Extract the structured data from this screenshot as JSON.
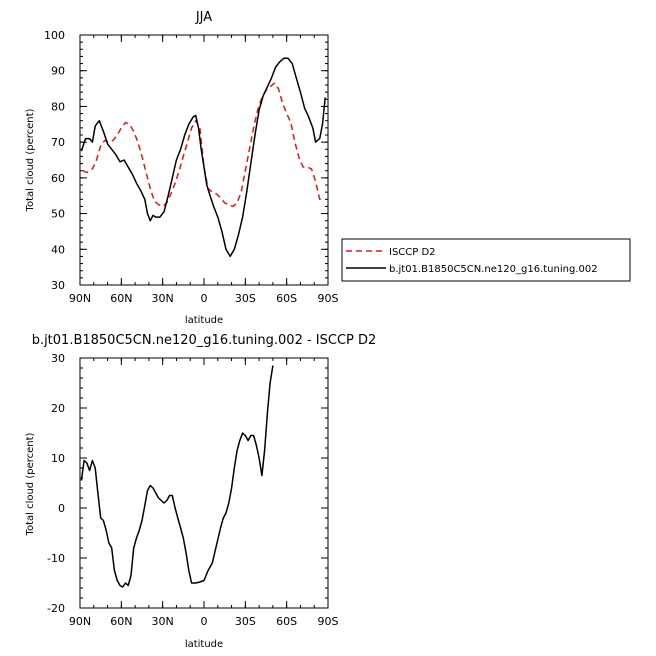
{
  "chart_data": [
    {
      "type": "line",
      "title": "JJA",
      "xlabel": "latitude",
      "ylabel": "Total cloud (percent)",
      "xlim": [
        -90,
        90
      ],
      "ylim": [
        30,
        100
      ],
      "x_ticks": [
        {
          "value": -90,
          "label": "90N"
        },
        {
          "value": -60,
          "label": "60N"
        },
        {
          "value": -30,
          "label": "30N"
        },
        {
          "value": 0,
          "label": "0"
        },
        {
          "value": 30,
          "label": "30S"
        },
        {
          "value": 60,
          "label": "60S"
        },
        {
          "value": 90,
          "label": "90S"
        }
      ],
      "y_ticks": [
        30,
        40,
        50,
        60,
        70,
        80,
        90,
        100
      ],
      "legend_position": "right",
      "series": [
        {
          "name": "ISCCP D2",
          "color": "#e0191b",
          "dash": "dashed",
          "points": [
            [
              -88,
              62
            ],
            [
              -85,
              61.5
            ],
            [
              -81,
              62.5
            ],
            [
              -78,
              65
            ],
            [
              -75,
              69
            ],
            [
              -72,
              70.5
            ],
            [
              -69,
              70
            ],
            [
              -66,
              70.5
            ],
            [
              -63,
              72
            ],
            [
              -60,
              74
            ],
            [
              -57,
              75.5
            ],
            [
              -54,
              75
            ],
            [
              -51,
              73
            ],
            [
              -48,
              70
            ],
            [
              -45,
              66
            ],
            [
              -42,
              61.5
            ],
            [
              -39,
              57
            ],
            [
              -36,
              53.5
            ],
            [
              -33,
              52.5
            ],
            [
              -30,
              52
            ],
            [
              -27,
              53
            ],
            [
              -24,
              55.5
            ],
            [
              -21,
              58.5
            ],
            [
              -18,
              62
            ],
            [
              -15,
              66
            ],
            [
              -12,
              70
            ],
            [
              -9,
              74
            ],
            [
              -6,
              76
            ],
            [
              -3,
              74
            ],
            [
              0,
              63
            ],
            [
              3,
              57
            ],
            [
              6,
              56
            ],
            [
              9,
              55.5
            ],
            [
              12,
              54.5
            ],
            [
              15,
              53
            ],
            [
              18,
              52.5
            ],
            [
              21,
              52
            ],
            [
              24,
              53
            ],
            [
              27,
              56
            ],
            [
              30,
              62
            ],
            [
              33,
              68
            ],
            [
              36,
              74
            ],
            [
              39,
              79
            ],
            [
              42,
              82.5
            ],
            [
              45,
              84.5
            ],
            [
              48,
              85.5
            ],
            [
              51,
              86.5
            ],
            [
              54,
              85
            ],
            [
              57,
              81
            ],
            [
              60,
              78
            ],
            [
              63,
              75.5
            ],
            [
              66,
              70
            ],
            [
              69,
              65.5
            ],
            [
              72,
              63
            ],
            [
              75,
              63
            ],
            [
              78,
              62.5
            ],
            [
              81,
              59
            ],
            [
              84,
              54
            ],
            [
              86,
              54
            ]
          ]
        },
        {
          "name": "b.jt01.B1850C5CN.ne120_g16.tuning.002",
          "color": "#000000",
          "dash": "solid",
          "points": [
            [
              -89,
              67.5
            ],
            [
              -86,
              71
            ],
            [
              -83,
              71
            ],
            [
              -81,
              70
            ],
            [
              -79,
              74.5
            ],
            [
              -76,
              76
            ],
            [
              -73,
              73
            ],
            [
              -70,
              69.5
            ],
            [
              -67,
              68
            ],
            [
              -64,
              66.5
            ],
            [
              -61,
              64.5
            ],
            [
              -58,
              65
            ],
            [
              -55,
              63
            ],
            [
              -52,
              61
            ],
            [
              -49,
              58.5
            ],
            [
              -46,
              56.5
            ],
            [
              -43,
              54
            ],
            [
              -41,
              50
            ],
            [
              -39,
              48
            ],
            [
              -37,
              49.5
            ],
            [
              -35,
              49
            ],
            [
              -32,
              49
            ],
            [
              -29,
              50.5
            ],
            [
              -26,
              55
            ],
            [
              -23,
              60
            ],
            [
              -20,
              65
            ],
            [
              -17,
              68
            ],
            [
              -14,
              72
            ],
            [
              -11,
              75
            ],
            [
              -8,
              77
            ],
            [
              -6,
              77.5
            ],
            [
              -4,
              74
            ],
            [
              -2,
              68
            ],
            [
              0,
              63
            ],
            [
              2,
              58
            ],
            [
              4,
              55.5
            ],
            [
              7,
              52
            ],
            [
              10,
              49
            ],
            [
              13,
              45
            ],
            [
              16,
              40
            ],
            [
              19,
              38
            ],
            [
              22,
              40
            ],
            [
              25,
              44
            ],
            [
              28,
              49
            ],
            [
              31,
              56
            ],
            [
              34,
              64
            ],
            [
              37,
              72
            ],
            [
              40,
              79
            ],
            [
              43,
              83
            ],
            [
              46,
              85.5
            ],
            [
              49,
              88
            ],
            [
              52,
              91
            ],
            [
              55,
              92.5
            ],
            [
              58,
              93.5
            ],
            [
              61,
              93.5
            ],
            [
              64,
              92
            ],
            [
              67,
              88
            ],
            [
              70,
              84
            ],
            [
              73,
              79.5
            ],
            [
              76,
              77
            ],
            [
              79,
              74
            ],
            [
              81,
              70
            ],
            [
              84,
              71
            ],
            [
              86,
              75
            ],
            [
              88,
              82.5
            ]
          ]
        }
      ]
    },
    {
      "type": "line",
      "title": "b.jt01.B1850C5CN.ne120_g16.tuning.002  -  ISCCP D2",
      "xlabel": "latitude",
      "ylabel": "Total cloud (percent)",
      "xlim": [
        -90,
        90
      ],
      "ylim": [
        -20,
        30
      ],
      "x_ticks": [
        {
          "value": -90,
          "label": "90N"
        },
        {
          "value": -60,
          "label": "60N"
        },
        {
          "value": -30,
          "label": "30N"
        },
        {
          "value": 0,
          "label": "0"
        },
        {
          "value": 30,
          "label": "30S"
        },
        {
          "value": 60,
          "label": "60S"
        },
        {
          "value": 90,
          "label": "90S"
        }
      ],
      "y_ticks": [
        -20,
        -10,
        0,
        10,
        20,
        30
      ],
      "series": [
        {
          "color": "#000000",
          "dash": "solid",
          "points": [
            [
              -89,
              5.5
            ],
            [
              -87,
              9.5
            ],
            [
              -85,
              9
            ],
            [
              -83,
              7.5
            ],
            [
              -81,
              9.5
            ],
            [
              -79,
              8
            ],
            [
              -77,
              3
            ],
            [
              -75,
              -2
            ],
            [
              -73,
              -2.5
            ],
            [
              -71,
              -4.5
            ],
            [
              -69,
              -7
            ],
            [
              -67,
              -8
            ],
            [
              -65,
              -12.5
            ],
            [
              -63,
              -14.5
            ],
            [
              -61,
              -15.5
            ],
            [
              -59,
              -15.8
            ],
            [
              -57,
              -15
            ],
            [
              -55,
              -15.5
            ],
            [
              -53,
              -13.5
            ],
            [
              -51,
              -8
            ],
            [
              -49,
              -6
            ],
            [
              -47,
              -4.5
            ],
            [
              -45,
              -2.5
            ],
            [
              -43,
              0.5
            ],
            [
              -41,
              3.5
            ],
            [
              -39,
              4.5
            ],
            [
              -37,
              4
            ],
            [
              -35,
              3
            ],
            [
              -33,
              2
            ],
            [
              -31,
              1.5
            ],
            [
              -29,
              1
            ],
            [
              -27,
              1.5
            ],
            [
              -25,
              2.5
            ],
            [
              -23,
              2.5
            ],
            [
              -21,
              0
            ],
            [
              -19,
              -2
            ],
            [
              -17,
              -4
            ],
            [
              -15,
              -6
            ],
            [
              -13,
              -9
            ],
            [
              -11,
              -12.5
            ],
            [
              -9,
              -15
            ],
            [
              -6,
              -15
            ],
            [
              -3,
              -14.8
            ],
            [
              0,
              -14.5
            ],
            [
              3,
              -12.5
            ],
            [
              6,
              -11
            ],
            [
              9,
              -7.5
            ],
            [
              12,
              -4
            ],
            [
              14,
              -2
            ],
            [
              16,
              -1
            ],
            [
              18,
              1
            ],
            [
              20,
              4
            ],
            [
              22,
              8
            ],
            [
              24,
              11.5
            ],
            [
              26,
              13.5
            ],
            [
              28,
              15
            ],
            [
              30,
              14.5
            ],
            [
              32,
              13.5
            ],
            [
              34,
              14.5
            ],
            [
              36,
              14.5
            ],
            [
              38,
              12.5
            ],
            [
              40,
              10
            ],
            [
              42,
              6.5
            ],
            [
              44,
              11.5
            ],
            [
              46,
              19
            ],
            [
              48,
              25
            ],
            [
              50,
              28.5
            ]
          ]
        }
      ]
    }
  ]
}
